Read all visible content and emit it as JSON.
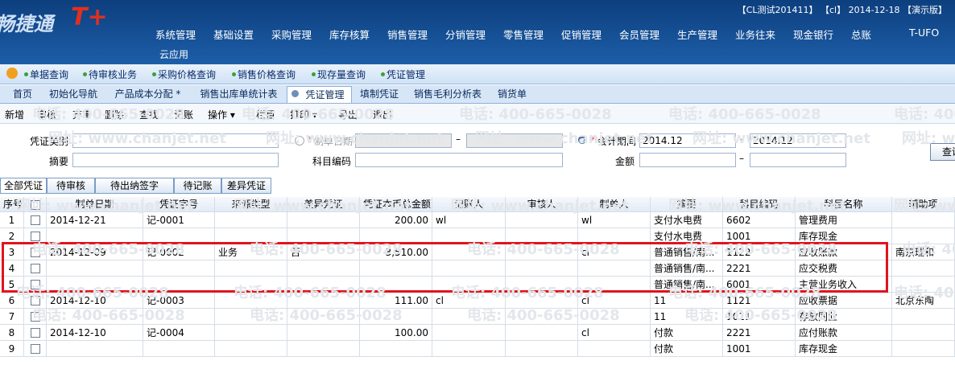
{
  "header": {
    "logo": "畅捷通",
    "logo_mark": "T+",
    "status": "【CL测试201411】 【cl】 2014-12-18 【演示版】",
    "menu": [
      "系统管理",
      "基础设置",
      "采购管理",
      "库存核算",
      "销售管理",
      "分销管理",
      "零售管理",
      "促销管理",
      "会员管理",
      "生产管理",
      "业务往来",
      "现金银行",
      "总账",
      "T-UFO"
    ],
    "cloud": "云应用"
  },
  "quickbar": [
    "单据查询",
    "待审核业务",
    "采购价格查询",
    "销售价格查询",
    "现存量查询",
    "凭证管理"
  ],
  "tabs": [
    "首页",
    "初始化导航",
    "产品成本分配 *",
    "销售出库单统计表",
    "凭证管理",
    "填制凭证",
    "销售毛利分析表",
    "销货单"
  ],
  "toolbar": [
    "新增",
    "审核",
    "弃审",
    "删除",
    "查找",
    "记账",
    "操作 ▾",
    "栏目",
    "打印 ▾",
    "导出",
    "退出"
  ],
  "watermark": {
    "phone": "电话: 400-665-0028",
    "url": "网址: www.chanjet.net"
  },
  "filter": {
    "voucher_type": "凭证类别",
    "required_mark": "*",
    "make_date": "制单日期",
    "period": "会计期间",
    "period_from": "2014.12",
    "period_to": "2014.12",
    "separator": "–",
    "summary": "摘要",
    "account_code": "科目编码",
    "amount": "金额",
    "query": "查询"
  },
  "status_buttons": [
    "全部凭证",
    "待审核",
    "待出纳签字",
    "待记账",
    "差异凭证"
  ],
  "table": {
    "columns": [
      "序号",
      "制单日期",
      "凭证字号",
      "来源类型",
      "差异凭证",
      "凭证本币总金额",
      "记账人",
      "审核人",
      "制单人",
      "摘要",
      "科目编码",
      "科目名称",
      "辅助项"
    ],
    "rows": [
      {
        "no": "1",
        "date": "2014-12-21",
        "voucher": "记-0001",
        "amount": "200.00",
        "bookkeeper": "wl",
        "maker": "wl",
        "summary": "支付水电费",
        "code": "6602",
        "account": "管理费用"
      },
      {
        "no": "2",
        "summary": "支付水电费",
        "code": "1001",
        "account": "库存现金"
      },
      {
        "no": "3",
        "date": "2014-12-09",
        "voucher": "记-0002",
        "source": "业务",
        "diff": "否",
        "amount": "3,510.00",
        "maker": "cl",
        "summary": "普通销售/南...",
        "code": "1122",
        "account": "应收账款",
        "aux": "南京瑞和"
      },
      {
        "no": "4",
        "summary": "普通销售/南...",
        "code": "2221",
        "account": "应交税费"
      },
      {
        "no": "5",
        "summary": "普通销售/南...",
        "code": "6001",
        "account": "主营业务收入"
      },
      {
        "no": "6",
        "date": "2014-12-10",
        "voucher": "记-0003",
        "amount": "111.00",
        "bookkeeper": "cl",
        "maker": "cl",
        "summary": "11",
        "code": "1121",
        "account": "应收票据",
        "aux": "北京东陶"
      },
      {
        "no": "7",
        "summary": "11",
        "code": "1011",
        "account": "存放同业"
      },
      {
        "no": "8",
        "date": "2014-12-10",
        "voucher": "记-0004",
        "amount": "100.00",
        "maker": "cl",
        "summary": "付款",
        "code": "2221",
        "account": "应付账款"
      },
      {
        "no": "9",
        "summary": "付款",
        "code": "1001",
        "account": "库存现金"
      }
    ]
  }
}
